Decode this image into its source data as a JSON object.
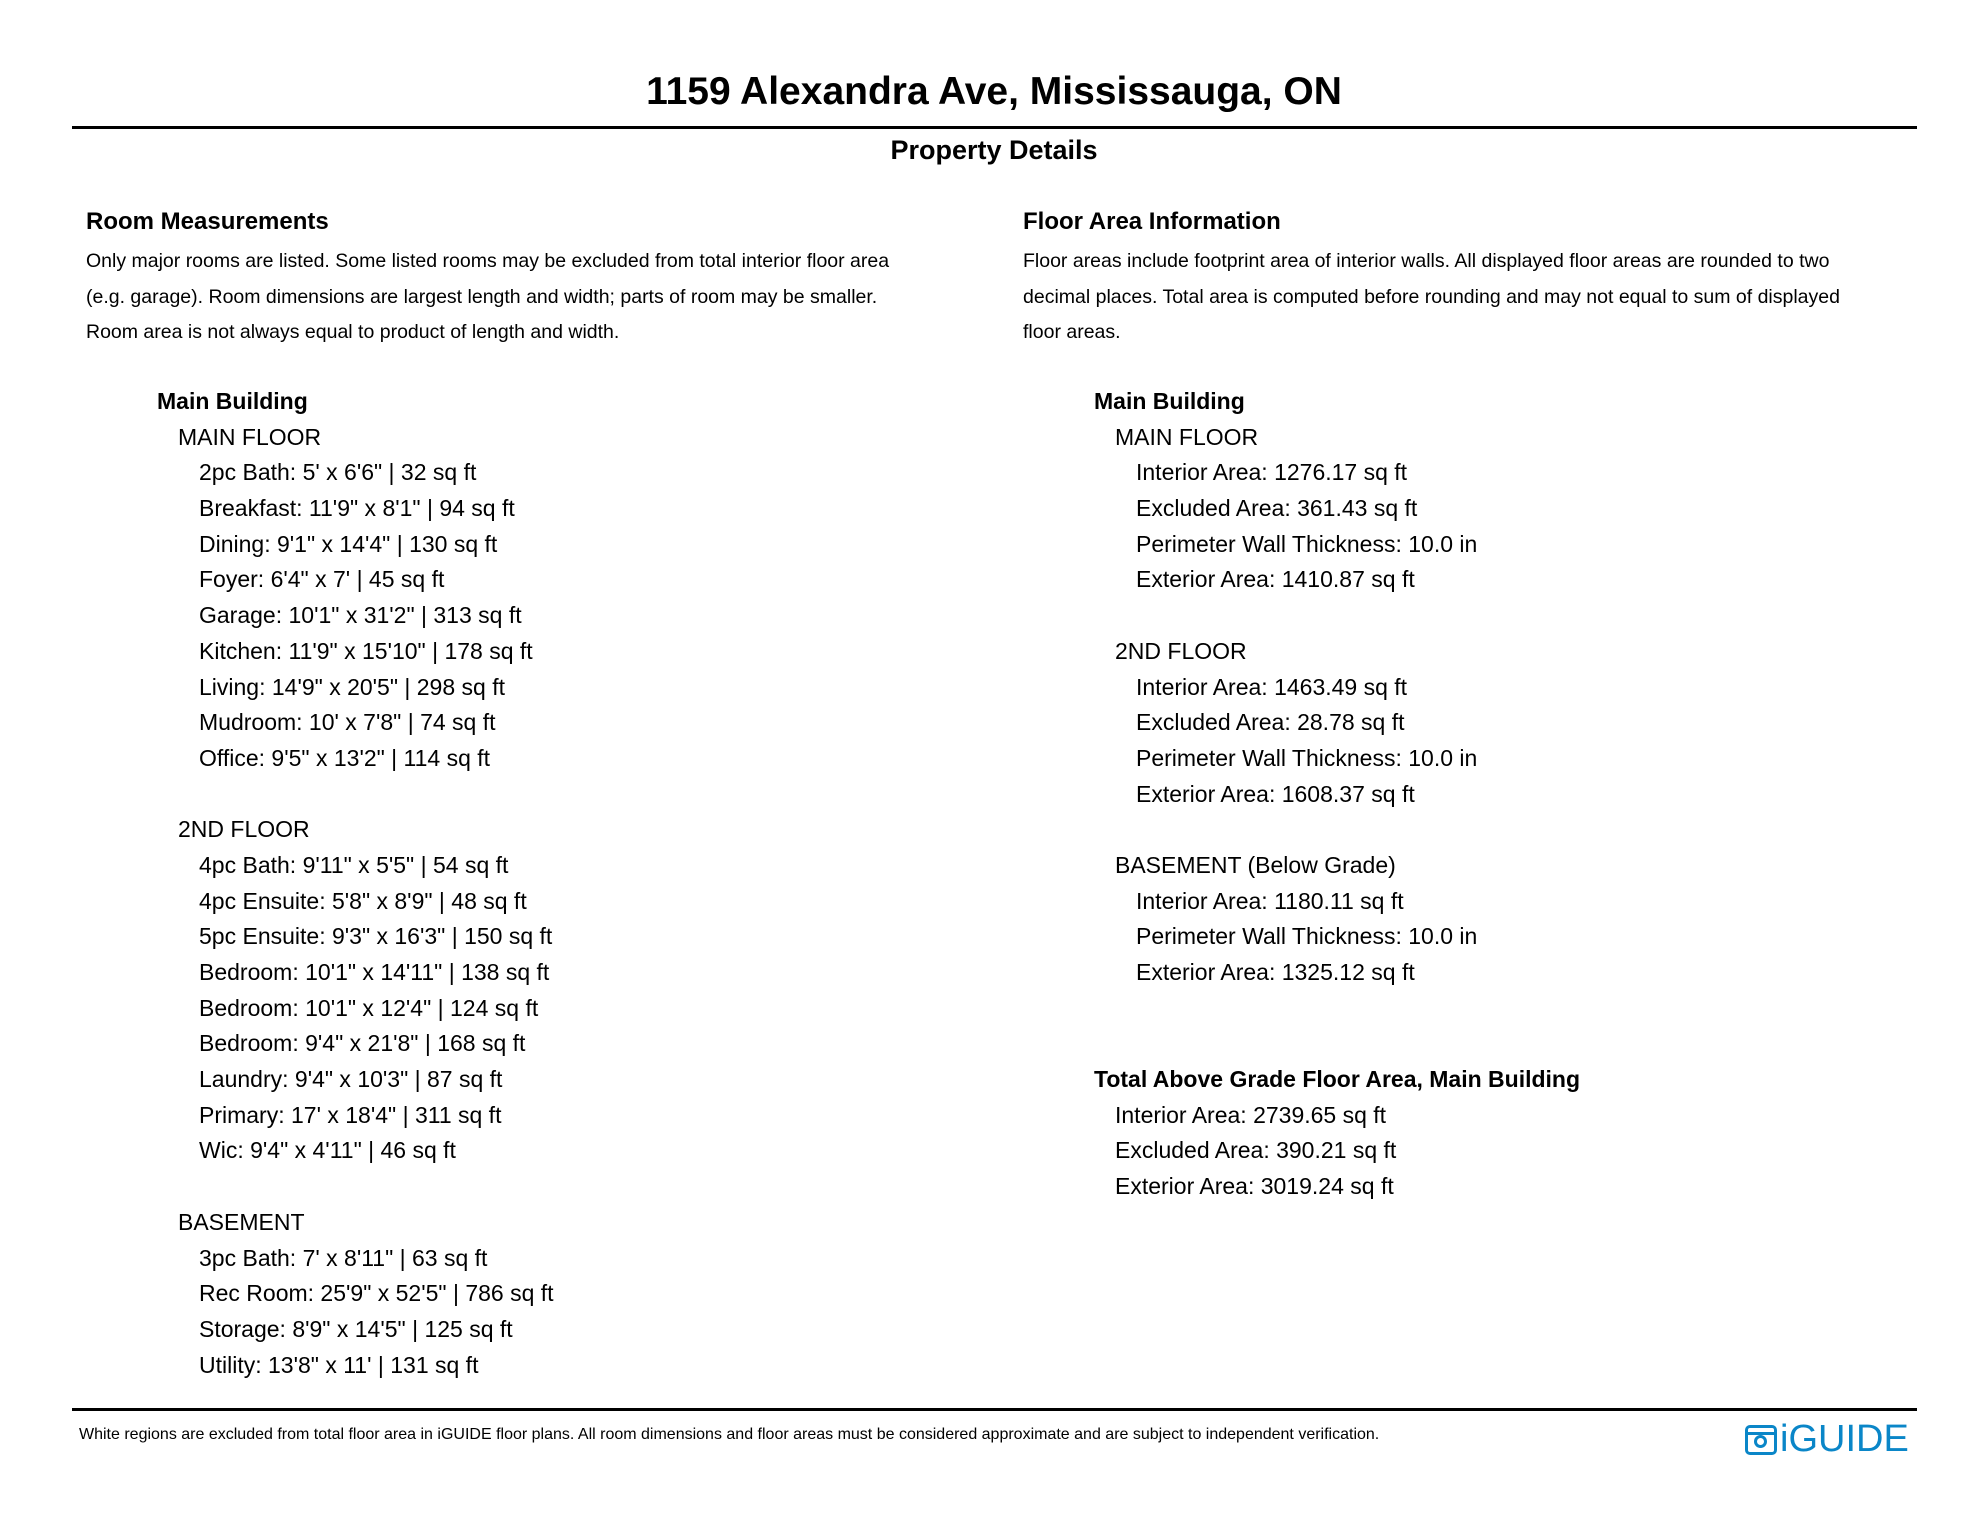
{
  "header": {
    "title": "1159 Alexandra Ave, Mississauga, ON",
    "subtitle": "Property Details"
  },
  "left": {
    "heading": "Room Measurements",
    "description": [
      "Only major rooms are listed. Some listed rooms may be excluded from total interior floor area",
      "(e.g. garage). Room dimensions are largest length and width; parts of room may be smaller.",
      "Room area is not always equal to product of length and width."
    ],
    "building": "Main Building",
    "floors": [
      {
        "name": "MAIN FLOOR",
        "items": [
          "2pc Bath: 5' x 6'6\" | 32 sq ft",
          "Breakfast: 11'9\" x 8'1\" | 94 sq ft",
          "Dining: 9'1\" x 14'4\" | 130 sq ft",
          "Foyer: 6'4\" x 7' | 45 sq ft",
          "Garage: 10'1\" x 31'2\" | 313 sq ft",
          "Kitchen: 11'9\" x 15'10\" | 178 sq ft",
          "Living: 14'9\" x 20'5\" | 298 sq ft",
          "Mudroom: 10' x 7'8\" | 74 sq ft",
          "Office: 9'5\" x 13'2\" | 114 sq ft"
        ]
      },
      {
        "name": "2ND FLOOR",
        "items": [
          "4pc Bath: 9'11\" x 5'5\" | 54 sq ft",
          "4pc Ensuite: 5'8\" x 8'9\" | 48 sq ft",
          "5pc Ensuite: 9'3\" x 16'3\" | 150 sq ft",
          "Bedroom: 10'1\" x 14'11\" | 138 sq ft",
          "Bedroom: 10'1\" x 12'4\" | 124 sq ft",
          "Bedroom: 9'4\" x 21'8\" | 168 sq ft",
          "Laundry: 9'4\" x 10'3\" | 87 sq ft",
          "Primary: 17' x 18'4\" | 311 sq ft",
          "Wic: 9'4\" x 4'11\" | 46 sq ft"
        ]
      },
      {
        "name": "BASEMENT",
        "items": [
          "3pc Bath: 7' x 8'11\" | 63 sq ft",
          "Rec Room: 25'9\" x 52'5\" | 786 sq ft",
          "Storage: 8'9\" x 14'5\" | 125 sq ft",
          "Utility: 13'8\" x 11' | 131 sq ft"
        ]
      }
    ]
  },
  "right": {
    "heading": "Floor Area Information",
    "description": [
      "Floor areas include footprint area of interior walls. All displayed floor areas are rounded to two",
      "decimal places. Total area is computed before rounding and may not equal to sum of displayed",
      "floor areas."
    ],
    "building": "Main Building",
    "floors": [
      {
        "name": "MAIN FLOOR",
        "items": [
          "Interior Area: 1276.17 sq ft",
          "Excluded Area: 361.43 sq ft",
          "Perimeter Wall Thickness: 10.0 in",
          "Exterior Area: 1410.87 sq ft"
        ]
      },
      {
        "name": "2ND FLOOR",
        "items": [
          "Interior Area: 1463.49 sq ft",
          "Excluded Area: 28.78 sq ft",
          "Perimeter Wall Thickness: 10.0 in",
          "Exterior Area: 1608.37 sq ft"
        ]
      },
      {
        "name": "BASEMENT (Below Grade)",
        "items": [
          "Interior Area: 1180.11 sq ft",
          "Perimeter Wall Thickness: 10.0 in",
          "Exterior Area: 1325.12 sq ft"
        ]
      }
    ],
    "total": {
      "heading": "Total Above Grade Floor Area, Main Building",
      "items": [
        "Interior Area: 2739.65 sq ft",
        "Excluded Area: 390.21 sq ft",
        "Exterior Area: 3019.24 sq ft"
      ]
    }
  },
  "footer": {
    "note": "White regions are excluded from total floor area in iGUIDE floor plans. All room dimensions and floor areas must be considered approximate and are subject to independent verification.",
    "logo": "iGUIDE",
    "logo_color": "#0a86c8"
  }
}
